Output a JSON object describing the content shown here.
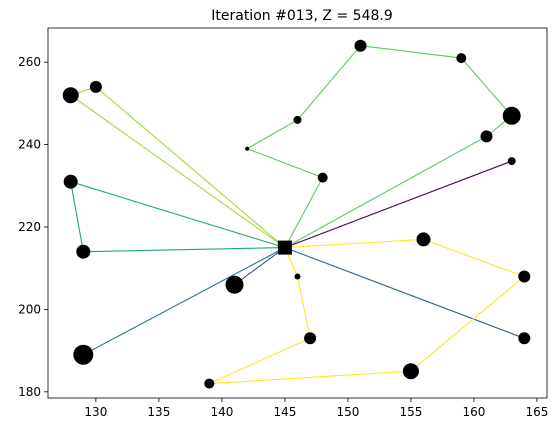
{
  "chart_data": {
    "type": "scatter",
    "title": "Iteration #013, Z = 548.9",
    "xlabel": "",
    "ylabel": "",
    "xlim": [
      126.2,
      165.8
    ],
    "ylim": [
      178.5,
      268.3
    ],
    "xticks": [
      130,
      135,
      140,
      145,
      150,
      155,
      160,
      165
    ],
    "yticks": [
      180,
      200,
      220,
      240,
      260
    ],
    "depot": {
      "x": 145,
      "y": 215,
      "marker": "square"
    },
    "customers": [
      {
        "x": 151,
        "y": 264,
        "size": 6
      },
      {
        "x": 159,
        "y": 261,
        "size": 5
      },
      {
        "x": 163,
        "y": 247,
        "size": 9
      },
      {
        "x": 161,
        "y": 242,
        "size": 6
      },
      {
        "x": 146,
        "y": 246,
        "size": 4
      },
      {
        "x": 142,
        "y": 239,
        "size": 2
      },
      {
        "x": 148,
        "y": 232,
        "size": 5
      },
      {
        "x": 128,
        "y": 252,
        "size": 8
      },
      {
        "x": 130,
        "y": 254,
        "size": 6
      },
      {
        "x": 128,
        "y": 231,
        "size": 7
      },
      {
        "x": 129,
        "y": 214,
        "size": 7
      },
      {
        "x": 163,
        "y": 236,
        "size": 4
      },
      {
        "x": 156,
        "y": 217,
        "size": 7
      },
      {
        "x": 164,
        "y": 208,
        "size": 6
      },
      {
        "x": 146,
        "y": 208,
        "size": 3
      },
      {
        "x": 141,
        "y": 206,
        "size": 9
      },
      {
        "x": 147,
        "y": 193,
        "size": 6
      },
      {
        "x": 139,
        "y": 182,
        "size": 5
      },
      {
        "x": 155,
        "y": 185,
        "size": 8
      },
      {
        "x": 164,
        "y": 193,
        "size": 6
      },
      {
        "x": 129,
        "y": 189,
        "size": 10
      }
    ],
    "routes": [
      {
        "color": "#5ec962",
        "path": [
          [
            145,
            215
          ],
          [
            161,
            242
          ],
          [
            163,
            247
          ],
          [
            159,
            261
          ],
          [
            151,
            264
          ],
          [
            146,
            246
          ],
          [
            142,
            239
          ],
          [
            148,
            232
          ],
          [
            145,
            215
          ]
        ]
      },
      {
        "color": "#a0da39",
        "path": [
          [
            145,
            215
          ],
          [
            128,
            252
          ],
          [
            130,
            254
          ],
          [
            145,
            215
          ]
        ]
      },
      {
        "color": "#21a585",
        "path": [
          [
            145,
            215
          ],
          [
            128,
            231
          ],
          [
            129,
            214
          ],
          [
            145,
            215
          ]
        ]
      },
      {
        "color": "#440154",
        "path": [
          [
            145,
            215
          ],
          [
            163,
            236
          ],
          [
            145,
            215
          ]
        ]
      },
      {
        "color": "#3b528b",
        "path": [
          [
            145,
            215
          ],
          [
            141,
            206
          ],
          [
            145,
            215
          ]
        ]
      },
      {
        "color": "#2c728e",
        "path": [
          [
            145,
            215
          ],
          [
            129,
            189
          ],
          [
            145,
            215
          ]
        ]
      },
      {
        "color": "#31688e",
        "path": [
          [
            145,
            215
          ],
          [
            164,
            193
          ],
          [
            145,
            215
          ]
        ]
      },
      {
        "color": "#fde725",
        "path": [
          [
            145,
            215
          ],
          [
            156,
            217
          ],
          [
            164,
            208
          ],
          [
            155,
            185
          ],
          [
            139,
            182
          ],
          [
            147,
            193
          ],
          [
            146,
            208
          ],
          [
            145,
            215
          ]
        ]
      }
    ],
    "grid": false,
    "legend": "none"
  }
}
